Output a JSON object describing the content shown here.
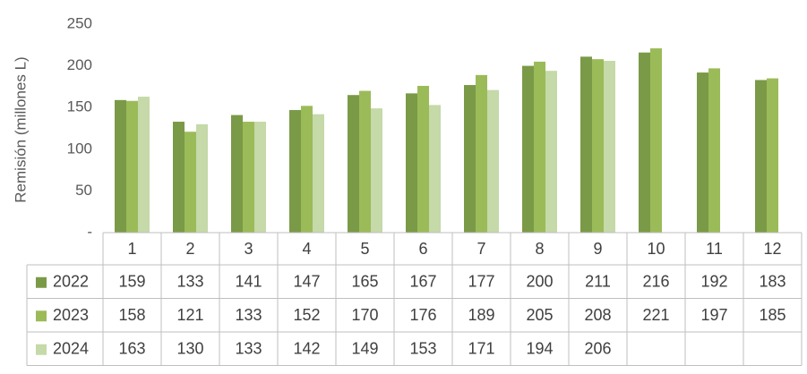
{
  "chart_data": {
    "type": "bar",
    "y_label": "Remisión (millones L)",
    "categories": [
      "1",
      "2",
      "3",
      "4",
      "5",
      "6",
      "7",
      "8",
      "9",
      "10",
      "11",
      "12"
    ],
    "series": [
      {
        "name": "2022",
        "color": "#7a9a47",
        "values": [
          159,
          133,
          141,
          147,
          165,
          167,
          177,
          200,
          211,
          216,
          192,
          183
        ]
      },
      {
        "name": "2023",
        "color": "#9bbb59",
        "values": [
          158,
          121,
          133,
          152,
          170,
          176,
          189,
          205,
          208,
          221,
          197,
          185
        ]
      },
      {
        "name": "2024",
        "color": "#c5d9a9",
        "values": [
          163,
          130,
          133,
          142,
          149,
          153,
          171,
          194,
          206,
          null,
          null,
          null
        ]
      }
    ],
    "ylim": [
      0,
      250
    ],
    "yticks": [
      {
        "value": 0,
        "label": "-"
      },
      50,
      100,
      150,
      200,
      250
    ],
    "grid": false,
    "data_table": true
  }
}
